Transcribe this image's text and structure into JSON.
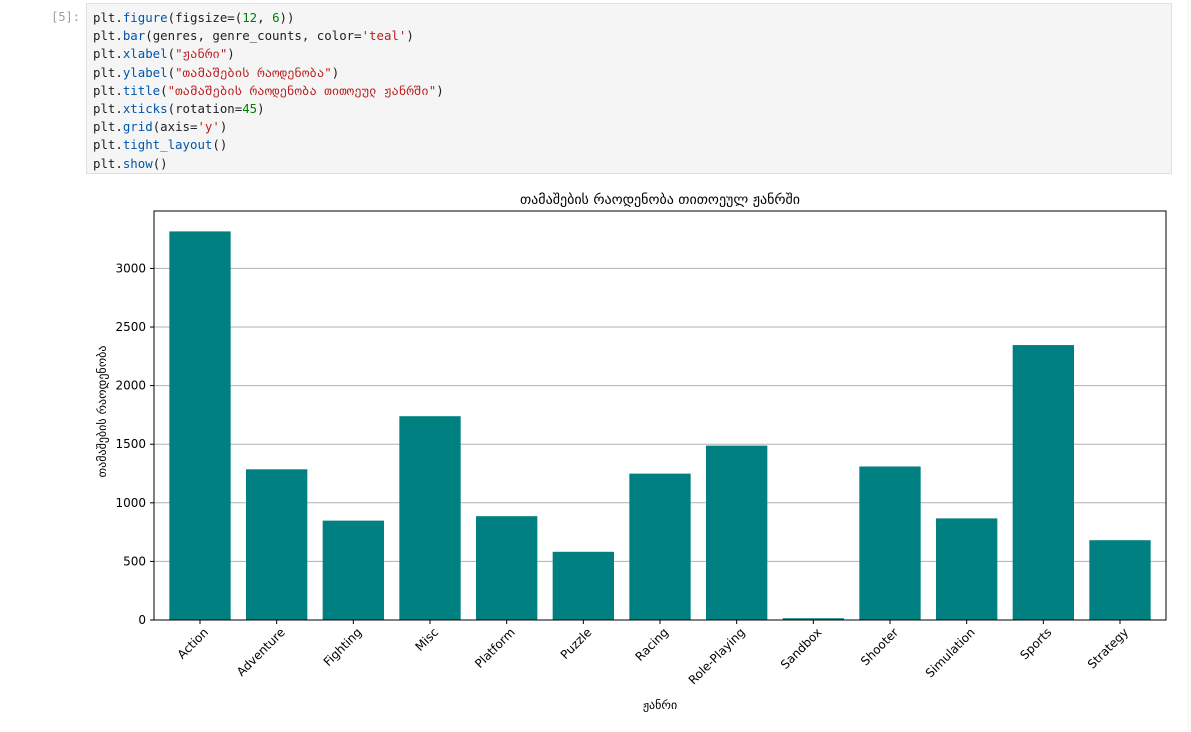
{
  "cell": {
    "prompt": "[5]:",
    "code_lines": [
      {
        "parts": [
          {
            "t": "plt.",
            "c": "k"
          },
          {
            "t": "figure",
            "c": "f"
          },
          {
            "t": "(figsize=(",
            "c": "k"
          },
          {
            "t": "12",
            "c": "n"
          },
          {
            "t": ", ",
            "c": "k"
          },
          {
            "t": "6",
            "c": "n"
          },
          {
            "t": "))",
            "c": "k"
          }
        ]
      },
      {
        "parts": [
          {
            "t": "plt.",
            "c": "k"
          },
          {
            "t": "bar",
            "c": "f"
          },
          {
            "t": "(genres, genre_counts, color=",
            "c": "k"
          },
          {
            "t": "'teal'",
            "c": "s"
          },
          {
            "t": ")",
            "c": "k"
          }
        ]
      },
      {
        "parts": [
          {
            "t": "plt.",
            "c": "k"
          },
          {
            "t": "xlabel",
            "c": "f"
          },
          {
            "t": "(",
            "c": "k"
          },
          {
            "t": "\"ჟანრი\"",
            "c": "s"
          },
          {
            "t": ")",
            "c": "k"
          }
        ]
      },
      {
        "parts": [
          {
            "t": "plt.",
            "c": "k"
          },
          {
            "t": "ylabel",
            "c": "f"
          },
          {
            "t": "(",
            "c": "k"
          },
          {
            "t": "\"თამაშების რაოდენობა\"",
            "c": "s"
          },
          {
            "t": ")",
            "c": "k"
          }
        ]
      },
      {
        "parts": [
          {
            "t": "plt.",
            "c": "k"
          },
          {
            "t": "title",
            "c": "f"
          },
          {
            "t": "(",
            "c": "k"
          },
          {
            "t": "\"თამაშების რაოდენობა თითოეულ ჟანრში\"",
            "c": "s"
          },
          {
            "t": ")",
            "c": "k"
          }
        ]
      },
      {
        "parts": [
          {
            "t": "plt.",
            "c": "k"
          },
          {
            "t": "xticks",
            "c": "f"
          },
          {
            "t": "(rotation=",
            "c": "k"
          },
          {
            "t": "45",
            "c": "n"
          },
          {
            "t": ")",
            "c": "k"
          }
        ]
      },
      {
        "parts": [
          {
            "t": "plt.",
            "c": "k"
          },
          {
            "t": "grid",
            "c": "f"
          },
          {
            "t": "(axis=",
            "c": "k"
          },
          {
            "t": "'y'",
            "c": "s"
          },
          {
            "t": ")",
            "c": "k"
          }
        ]
      },
      {
        "parts": [
          {
            "t": "plt.",
            "c": "k"
          },
          {
            "t": "tight_layout",
            "c": "f"
          },
          {
            "t": "()",
            "c": "k"
          }
        ]
      },
      {
        "parts": [
          {
            "t": "plt.",
            "c": "k"
          },
          {
            "t": "show",
            "c": "f"
          },
          {
            "t": "()",
            "c": "k"
          }
        ]
      }
    ]
  },
  "colors": {
    "bar": "#008080",
    "grid": "#b0b0b0",
    "axis": "#000000",
    "text": "#000000"
  },
  "chart_data": {
    "type": "bar",
    "title": "თამაშების რაოდენობა თითოეულ ჟანრში",
    "xlabel": "ჟანრი",
    "ylabel": "თამაშების რაოდენობა",
    "categories": [
      "Action",
      "Adventure",
      "Fighting",
      "Misc",
      "Platform",
      "Puzzle",
      "Racing",
      "Role-Playing",
      "Sandbox",
      "Shooter",
      "Simulation",
      "Sports",
      "Strategy"
    ],
    "values": [
      3316,
      1286,
      848,
      1739,
      886,
      582,
      1249,
      1488,
      15,
      1310,
      867,
      2346,
      681
    ],
    "ylim": [
      0,
      3490
    ],
    "yticks": [
      0,
      500,
      1000,
      1500,
      2000,
      2500,
      3000
    ],
    "grid": "y",
    "xtick_rotation": 45
  }
}
